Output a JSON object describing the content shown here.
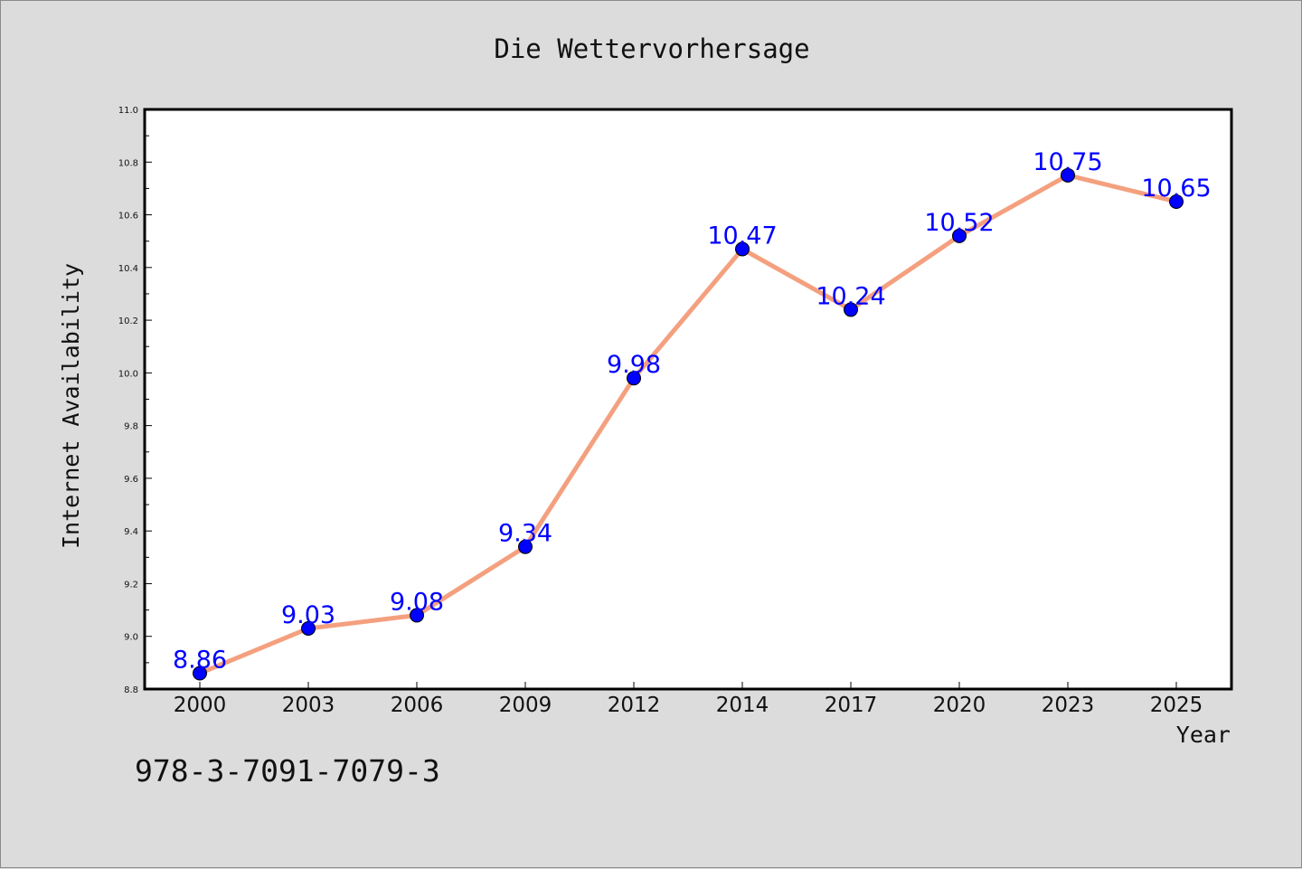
{
  "chart_data": {
    "type": "line",
    "title": "Die Wettervorhersage",
    "xlabel": "Year",
    "ylabel": "Internet Availability",
    "categories": [
      "2000",
      "2003",
      "2006",
      "2009",
      "2012",
      "2014",
      "2017",
      "2020",
      "2023",
      "2025"
    ],
    "series": [
      {
        "values": [
          8.86,
          9.03,
          9.08,
          9.34,
          9.98,
          10.47,
          10.24,
          10.52,
          10.75,
          10.65
        ],
        "data_labels": [
          "8.86",
          "9.03",
          "9.08",
          "9.34",
          "9.98",
          "10.47",
          "10.24",
          "10.52",
          "10.75",
          "10.65"
        ],
        "line_color": "#f4a07f",
        "marker_color": "#0000ff",
        "label_color": "#0000ff"
      }
    ],
    "ylim": [
      8.8,
      11.0
    ],
    "y_ticks": [
      "8.8",
      "9.0",
      "9.2",
      "9.4",
      "9.6",
      "9.8",
      "10.0",
      "10.2",
      "10.4",
      "10.6",
      "10.8",
      "11.0"
    ],
    "grid": false,
    "legend": "none",
    "background": "#dcdcdc",
    "plot_background": "#ffffff"
  },
  "footer": {
    "code": "978-3-7091-7079-3"
  }
}
